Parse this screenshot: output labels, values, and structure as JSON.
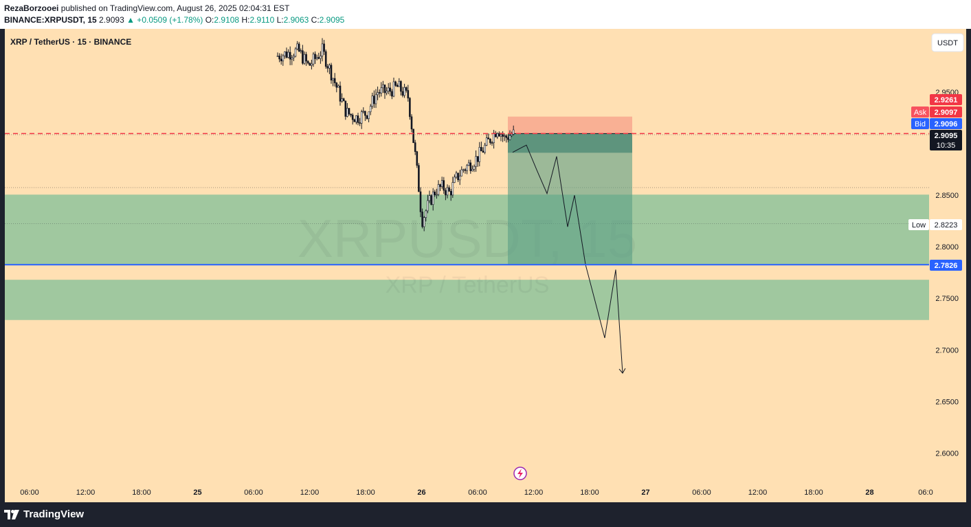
{
  "header": {
    "author": "RezaBorzooei",
    "published": "published on TradingView.com, August 26, 2025 02:04:31 EST",
    "symbol_line": "BINANCE:XRPUSDT, 15",
    "last": "2.9093",
    "change": "▲ +0.0509 (+1.78%)",
    "o_label": "O:",
    "o": "2.9108",
    "h_label": "H:",
    "h": "2.9110",
    "l_label": "L:",
    "l": "2.9063",
    "c_label": "C:",
    "c": "2.9095"
  },
  "legend": {
    "title": "XRP / TetherUS · 15 · BINANCE"
  },
  "currency_button": "USDT",
  "watermark": {
    "ticker": "XRPUSDT, 15",
    "name": "XRP / TetherUS"
  },
  "price_labels": {
    "p1": "2.9261",
    "ask_tag": "Ask",
    "ask": "2.9097",
    "bid_tag": "Bid",
    "bid": "2.9096",
    "last": "2.9095",
    "countdown": "10:35",
    "low_tag": "Low",
    "low": "2.8223",
    "line": "2.7826"
  },
  "footer": {
    "brand": "TradingView"
  },
  "colors": {
    "background": "#ffe0b3",
    "ask": "#f23645",
    "bid": "#2962ff",
    "zone": "#9bc69e",
    "up": "#089981"
  },
  "chart_data": {
    "type": "candlestick",
    "symbol": "XRPUSDT",
    "interval": "15",
    "y_ticks": [
      "2.9500",
      "2.8500",
      "2.8000",
      "2.7500",
      "2.7000",
      "2.6500",
      "2.6000"
    ],
    "x_ticks": [
      "06:00",
      "12:00",
      "18:00",
      "25",
      "06:00",
      "12:00",
      "18:00",
      "26",
      "06:00",
      "12:00",
      "18:00",
      "27",
      "06:00",
      "12:00",
      "18:00",
      "28",
      "06:0"
    ],
    "ylim": [
      2.585,
      3.0
    ],
    "series": [
      {
        "name": "close_path",
        "x": [
          -17,
          -15.5,
          -14.75,
          -13.75,
          -13,
          -12,
          -11.25,
          -10.5,
          -9.75,
          -9,
          -8.25,
          -7.5,
          -7,
          -6.75,
          -6.5,
          -6,
          -5.5,
          -5,
          -4.5,
          -4,
          -3.5,
          -3,
          -2.5,
          -2,
          -1.5,
          -1,
          -0.5,
          0,
          0.25
        ],
        "values": [
          2.985,
          2.99,
          2.975,
          2.99,
          2.965,
          2.93,
          2.925,
          2.93,
          2.95,
          2.95,
          2.955,
          2.945,
          2.89,
          2.86,
          2.825,
          2.842,
          2.855,
          2.858,
          2.852,
          2.866,
          2.875,
          2.88,
          2.886,
          2.895,
          2.905,
          2.915,
          2.905,
          2.909,
          2.9095
        ]
      }
    ],
    "horizontal_lines": {
      "ask": 2.9097,
      "bid": 2.9096,
      "low": 2.8223,
      "line": 2.7826
    },
    "zones": [
      {
        "from": 2.8505,
        "to": 2.7826
      },
      {
        "from": 2.768,
        "to": 2.729
      }
    ],
    "position_tool": {
      "type": "short",
      "stop": 2.9261,
      "entry": 2.9097,
      "target": 2.7826
    },
    "projection": {
      "x": [
        0.1,
        1.1,
        1.85,
        2.6,
        3.3,
        4.1,
        4.6,
        5.4,
        6.8,
        7.6,
        8.1
      ],
      "values": [
        2.8915,
        2.8985,
        2.8745,
        2.8515,
        2.8875,
        2.8193,
        2.8499,
        2.7828,
        2.7116,
        2.7778,
        2.6775
      ]
    }
  }
}
